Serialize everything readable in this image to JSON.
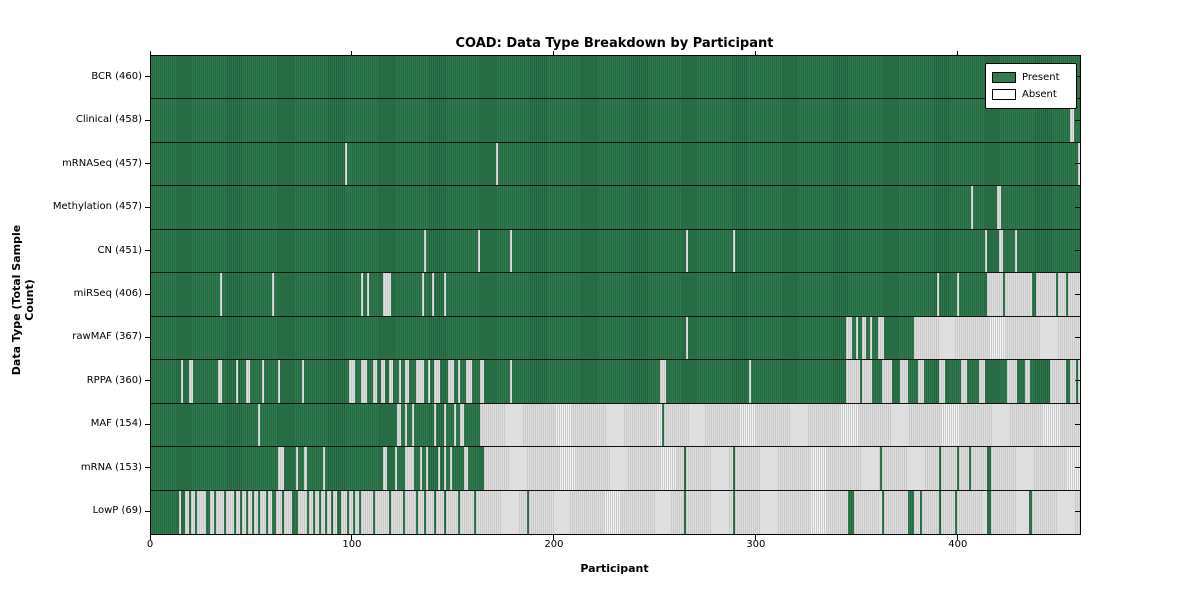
{
  "title": "COAD: Data Type Breakdown by Participant",
  "xlabel": "Participant",
  "ylabel": "Data Type (Total Sample Count)",
  "legend": {
    "present_label": "Present",
    "absent_label": "Absent"
  },
  "colors": {
    "present": "#2e7d4f",
    "present_stripe": "#235f3c",
    "absent": "#c9c9c9",
    "absent_stripe": "#f3f3f3",
    "frame": "#000000",
    "background": "#ffffff"
  },
  "chart_data": {
    "type": "heatmap",
    "title": "COAD: Data Type Breakdown by Participant",
    "xlabel": "Participant",
    "ylabel": "Data Type (Total Sample Count)",
    "legend_entries": [
      "Present",
      "Absent"
    ],
    "legend_position": "upper right",
    "grid": false,
    "participants": 460,
    "x_ticks": [
      0,
      100,
      200,
      300,
      400
    ],
    "x_max": 460,
    "rows": [
      {
        "name": "BCR",
        "label": "BCR (460)",
        "total": 460,
        "absent_ranges": []
      },
      {
        "name": "Clinical",
        "label": "Clinical (458)",
        "total": 458,
        "absent_ranges": [
          [
            455,
            456
          ]
        ]
      },
      {
        "name": "mRNASeq",
        "label": "mRNASeq (457)",
        "total": 457,
        "absent_ranges": [
          [
            96,
            96
          ],
          [
            171,
            171
          ],
          [
            459,
            459
          ]
        ]
      },
      {
        "name": "Methylation",
        "label": "Methylation (457)",
        "total": 457,
        "absent_ranges": [
          [
            406,
            406
          ],
          [
            419,
            420
          ]
        ]
      },
      {
        "name": "CN",
        "label": "CN (451)",
        "total": 451,
        "absent_ranges": [
          [
            135,
            135
          ],
          [
            162,
            162
          ],
          [
            178,
            178
          ],
          [
            265,
            265
          ],
          [
            288,
            288
          ],
          [
            413,
            413
          ],
          [
            420,
            421
          ],
          [
            428,
            428
          ]
        ]
      },
      {
        "name": "miRSeq",
        "label": "miRSeq (406)",
        "total": 406,
        "absent_ranges": [
          [
            34,
            34
          ],
          [
            60,
            60
          ],
          [
            104,
            104
          ],
          [
            107,
            107
          ],
          [
            115,
            118
          ],
          [
            134,
            134
          ],
          [
            139,
            139
          ],
          [
            145,
            145
          ],
          [
            389,
            389
          ],
          [
            399,
            399
          ],
          [
            414,
            421
          ],
          [
            423,
            435
          ],
          [
            438,
            447
          ],
          [
            449,
            452
          ],
          [
            454,
            459
          ]
        ]
      },
      {
        "name": "rawMAF",
        "label": "rawMAF (367)",
        "total": 367,
        "absent_ranges": [
          [
            265,
            265
          ],
          [
            344,
            346
          ],
          [
            349,
            349
          ],
          [
            352,
            353
          ],
          [
            356,
            356
          ],
          [
            360,
            362
          ],
          [
            378,
            459
          ]
        ]
      },
      {
        "name": "RPPA",
        "label": "RPPA (360)",
        "total": 360,
        "absent_ranges": [
          [
            15,
            15
          ],
          [
            19,
            20
          ],
          [
            33,
            34
          ],
          [
            42,
            42
          ],
          [
            47,
            48
          ],
          [
            55,
            55
          ],
          [
            63,
            63
          ],
          [
            75,
            75
          ],
          [
            98,
            100
          ],
          [
            104,
            106
          ],
          [
            110,
            111
          ],
          [
            114,
            115
          ],
          [
            118,
            119
          ],
          [
            123,
            123
          ],
          [
            126,
            127
          ],
          [
            131,
            134
          ],
          [
            137,
            137
          ],
          [
            140,
            142
          ],
          [
            147,
            149
          ],
          [
            152,
            152
          ],
          [
            156,
            158
          ],
          [
            163,
            164
          ],
          [
            178,
            178
          ],
          [
            252,
            254
          ],
          [
            296,
            296
          ],
          [
            344,
            350
          ],
          [
            352,
            356
          ],
          [
            362,
            366
          ],
          [
            371,
            374
          ],
          [
            380,
            382
          ],
          [
            390,
            392
          ],
          [
            401,
            403
          ],
          [
            410,
            412
          ],
          [
            424,
            428
          ],
          [
            433,
            434
          ],
          [
            445,
            452
          ],
          [
            455,
            457
          ],
          [
            459,
            459
          ]
        ]
      },
      {
        "name": "MAF",
        "label": "MAF (154)",
        "total": 154,
        "absent_ranges": [
          [
            53,
            53
          ],
          [
            122,
            123
          ],
          [
            126,
            126
          ],
          [
            129,
            129
          ],
          [
            140,
            140
          ],
          [
            145,
            145
          ],
          [
            150,
            150
          ],
          [
            153,
            154
          ],
          [
            163,
            252
          ],
          [
            254,
            459
          ]
        ]
      },
      {
        "name": "mRNA",
        "label": "mRNA (153)",
        "total": 153,
        "absent_ranges": [
          [
            63,
            65
          ],
          [
            72,
            72
          ],
          [
            76,
            76
          ],
          [
            85,
            85
          ],
          [
            115,
            116
          ],
          [
            121,
            121
          ],
          [
            126,
            129
          ],
          [
            133,
            133
          ],
          [
            136,
            136
          ],
          [
            142,
            142
          ],
          [
            145,
            145
          ],
          [
            148,
            148
          ],
          [
            155,
            156
          ],
          [
            165,
            263
          ],
          [
            265,
            287
          ],
          [
            289,
            360
          ],
          [
            362,
            389
          ],
          [
            391,
            398
          ],
          [
            400,
            404
          ],
          [
            406,
            413
          ],
          [
            416,
            459
          ]
        ]
      },
      {
        "name": "LowP",
        "label": "LowP (69)",
        "total": 69,
        "absent_ranges": [
          [
            14,
            14
          ],
          [
            17,
            18
          ],
          [
            20,
            21
          ],
          [
            23,
            26
          ],
          [
            29,
            30
          ],
          [
            32,
            35
          ],
          [
            37,
            40
          ],
          [
            42,
            43
          ],
          [
            45,
            46
          ],
          [
            48,
            49
          ],
          [
            51,
            52
          ],
          [
            54,
            56
          ],
          [
            58,
            59
          ],
          [
            62,
            64
          ],
          [
            66,
            69
          ],
          [
            73,
            76
          ],
          [
            78,
            79
          ],
          [
            81,
            82
          ],
          [
            84,
            85
          ],
          [
            87,
            88
          ],
          [
            90,
            91
          ],
          [
            94,
            96
          ],
          [
            98,
            99
          ],
          [
            101,
            102
          ],
          [
            104,
            109
          ],
          [
            111,
            117
          ],
          [
            119,
            124
          ],
          [
            126,
            130
          ],
          [
            132,
            134
          ],
          [
            136,
            139
          ],
          [
            141,
            144
          ],
          [
            146,
            151
          ],
          [
            153,
            159
          ],
          [
            161,
            185
          ],
          [
            187,
            263
          ],
          [
            265,
            287
          ],
          [
            289,
            344
          ],
          [
            348,
            361
          ],
          [
            363,
            374
          ],
          [
            378,
            380
          ],
          [
            382,
            389
          ],
          [
            391,
            397
          ],
          [
            399,
            413
          ],
          [
            416,
            434
          ],
          [
            436,
            459
          ]
        ]
      }
    ]
  }
}
